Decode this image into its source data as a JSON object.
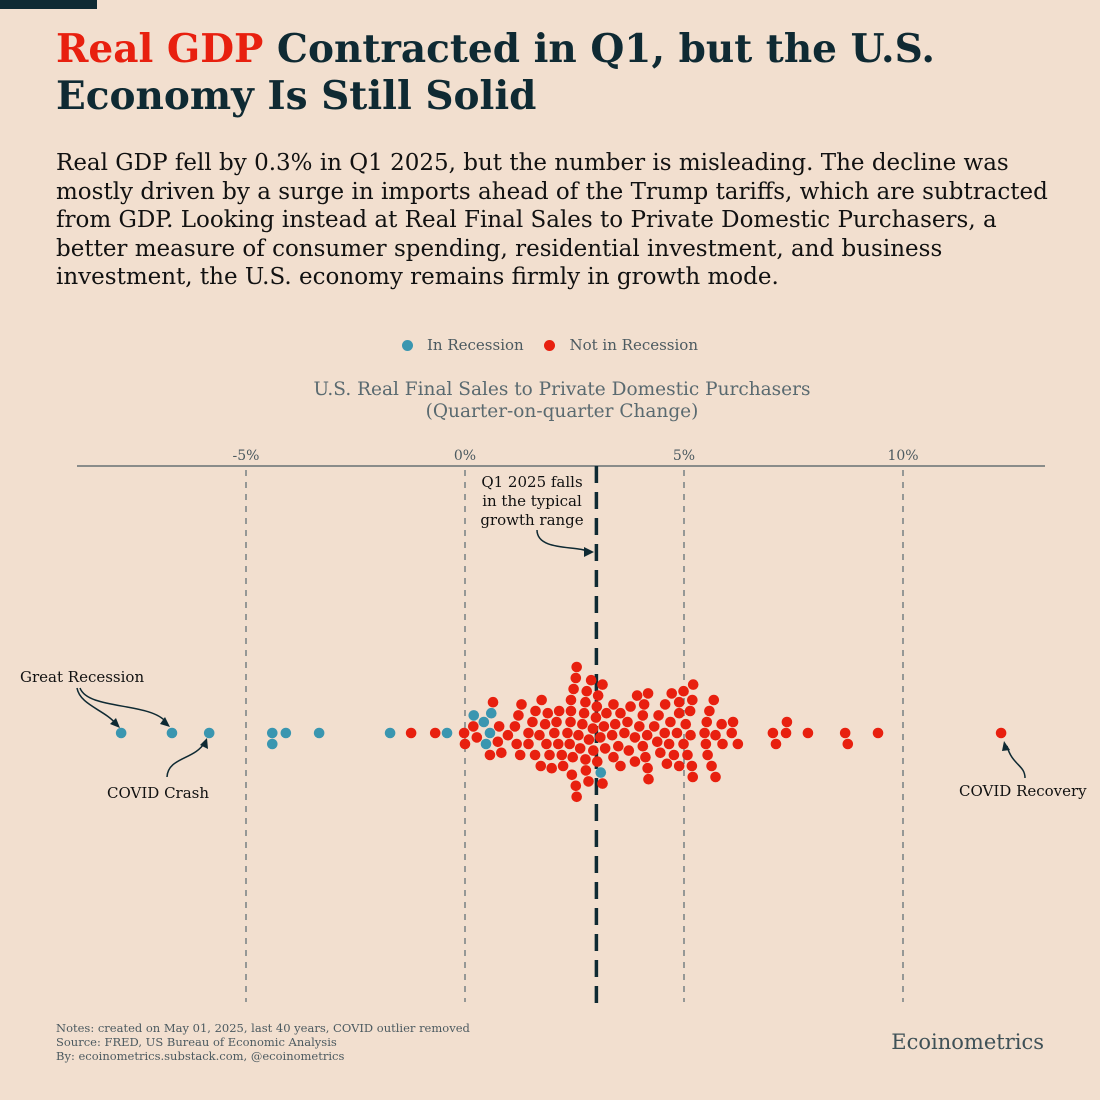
{
  "header": {
    "title_highlight": "Real GDP",
    "title_rest": " Contracted in Q1, but the U.S. Economy Is Still Solid",
    "description": "Real GDP fell by 0.3% in Q1 2025, but the number is misleading. The decline was mostly driven by a surge in imports ahead of the Trump tariffs, which are subtracted from GDP. Looking instead at Real Final Sales to Private Domestic Purchasers, a better measure of consumer spending, residential investment, and business investment, the U.S. economy remains firmly in growth mode."
  },
  "colors": {
    "recession": "#3a96b0",
    "not_recession": "#e8200f",
    "dark": "#0f2a33",
    "highlight": "#e8200f"
  },
  "chart_data": {
    "type": "scatter",
    "subtype": "beeswarm",
    "title": "U.S. Real Final Sales to Private Domestic Purchasers",
    "subtitle": "(Quarter-on-quarter Change)",
    "xlabel": "",
    "ylabel": "",
    "xlim": [
      -9.5,
      13
    ],
    "ticks": [
      {
        "value": -5,
        "label": "-5%"
      },
      {
        "value": 0,
        "label": "0%"
      },
      {
        "value": 5,
        "label": "5%"
      },
      {
        "value": 10,
        "label": "10%"
      }
    ],
    "legend": {
      "placement": "top-center",
      "entries": [
        "In Recession",
        "Not in Recession"
      ]
    },
    "reference_line": {
      "value": 3.0,
      "label": "Q1 2025"
    },
    "series": [
      {
        "name": "In Recession",
        "values": [
          -7.85,
          -6.69,
          -5.84,
          -4.4,
          -4.4,
          -4.09,
          -3.33,
          -1.71,
          -0.41,
          0.2,
          0.43,
          0.48,
          0.57,
          0.6,
          3.1
        ]
      },
      {
        "name": "Not in Recession",
        "values": [
          -1.23,
          -0.68,
          2.59,
          3.04,
          2.42,
          2.82,
          2.13,
          2.53,
          2.93,
          3.36,
          3.71,
          2.34,
          2.75,
          3.14,
          3.5,
          2.55,
          1.29,
          1.75,
          1.93,
          4.06,
          4.17,
          4.42,
          4.77,
          4.89,
          5.08,
          3.02,
          0.75,
          1.14,
          1.6,
          2.04,
          2.41,
          2.75,
          3.2,
          3.55,
          3.88,
          4.32,
          4.61,
          4.69,
          4.99,
          5.19,
          5.52,
          5.86,
          5.68,
          0.57,
          1.22,
          1.7,
          1.86,
          2.21,
          2.46,
          2.88,
          3.39,
          3.98,
          4.12,
          4.56,
          4.89,
          5.47,
          5.72,
          5.58,
          0.0,
          0.83,
          0.19,
          1.26,
          1.45,
          2.09,
          2.55,
          2.68,
          3.64,
          3.78,
          4.39,
          5.04,
          5.18,
          6.09,
          6.23,
          -0.02,
          0.64,
          0.98,
          1.73,
          2.42,
          3.01,
          3.23,
          3.43,
          4.06,
          4.16,
          4.72,
          4.89,
          5.5,
          5.63,
          6.12,
          0.27,
          0.78,
          1.18,
          1.54,
          1.89,
          2.48,
          2.78,
          2.92,
          3.14,
          3.88,
          4.18,
          4.57,
          4.99,
          5.15,
          5.72,
          1.61,
          1.98,
          2.24,
          3.55,
          3.93,
          4.19,
          4.66,
          5.2,
          5.88,
          1.45,
          1.83,
          2.53,
          2.72,
          2.39,
          2.99,
          3.17,
          3.39,
          3.74,
          4.09,
          4.46,
          4.84,
          5.54,
          5.21,
          2.15,
          2.44,
          2.76,
          5.14,
          2.83,
          3.09,
          2.63,
          7.1,
          7.03,
          7.35,
          7.33,
          7.83,
          8.68,
          8.74,
          9.43,
          12.24
        ]
      }
    ],
    "annotations": {
      "q1": [
        "Q1 2025 falls",
        "in the typical",
        "growth range"
      ],
      "great_recession": "Great Recession",
      "covid_crash": "COVID Crash",
      "covid_recovery": "COVID Recovery"
    }
  },
  "footer": {
    "notes": "Notes: created on May 01, 2025, last 40 years, COVID outlier removed",
    "source": "Source: FRED, US Bureau of Economic Analysis",
    "by": "By: ecoinometrics.substack.com, @ecoinometrics",
    "brand": "Ecoinometrics"
  }
}
